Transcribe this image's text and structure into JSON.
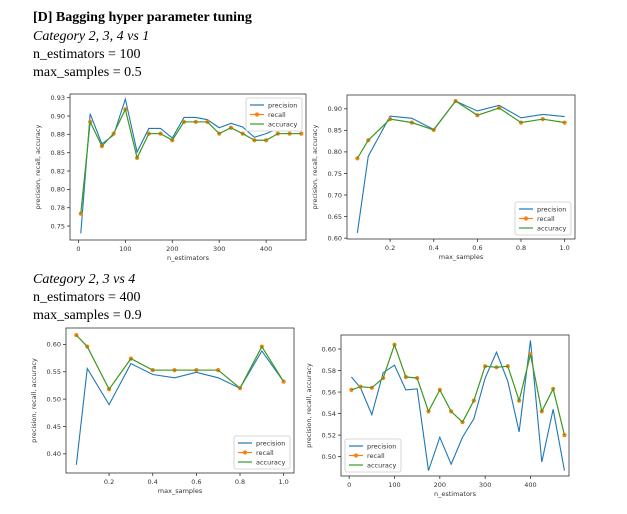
{
  "header": {
    "title": "[D] Bagging hyper parameter tuning",
    "section1": {
      "category": "Category 2, 3, 4 vs 1",
      "n_estimators_line": "n_estimators = 100",
      "max_samples_line": "max_samples = 0.5"
    },
    "section2": {
      "category": "Category 2, 3 vs 4",
      "n_estimators_line": "n_estimators = 400",
      "max_samples_line": "max_samples = 0.9"
    }
  },
  "colors": {
    "precision": "#1f77b4",
    "recall": "#ff7f0e",
    "accuracy": "#2ca02c"
  },
  "chart_data": [
    {
      "type": "line",
      "legend_position": "top-right",
      "xlabel": "n_estimators",
      "ylabel": "precision, recall, accuracy",
      "xlim": [
        -18,
        485
      ],
      "ylim": [
        0.731,
        0.93
      ],
      "xticks": [
        0,
        100,
        200,
        300,
        400
      ],
      "yticks": [
        0.75,
        0.775,
        0.8,
        0.825,
        0.85,
        0.875,
        0.9,
        0.925
      ],
      "x": [
        5,
        25,
        50,
        75,
        100,
        125,
        150,
        175,
        200,
        225,
        250,
        275,
        300,
        325,
        350,
        375,
        400,
        425,
        450,
        475
      ],
      "series": [
        {
          "name": "precision",
          "key": "precision",
          "values": [
            0.74,
            0.903,
            0.862,
            0.874,
            0.923,
            0.851,
            0.883,
            0.883,
            0.87,
            0.898,
            0.898,
            0.895,
            0.884,
            0.89,
            0.885,
            0.871,
            0.876,
            0.883,
            0.883,
            0.883
          ]
        },
        {
          "name": "recall",
          "key": "recall",
          "values": [
            0.767,
            0.892,
            0.859,
            0.876,
            0.909,
            0.843,
            0.876,
            0.876,
            0.867,
            0.892,
            0.892,
            0.892,
            0.876,
            0.884,
            0.876,
            0.867,
            0.867,
            0.876,
            0.876,
            0.876
          ]
        },
        {
          "name": "accuracy",
          "key": "accuracy",
          "values": [
            0.767,
            0.892,
            0.859,
            0.876,
            0.909,
            0.843,
            0.876,
            0.876,
            0.867,
            0.892,
            0.892,
            0.892,
            0.876,
            0.884,
            0.876,
            0.867,
            0.867,
            0.876,
            0.876,
            0.876
          ]
        }
      ]
    },
    {
      "type": "line",
      "legend_position": "lower-right",
      "xlabel": "max_samples",
      "ylabel": "precision, recall, accuracy",
      "xlim": [
        0.0025,
        1.0475
      ],
      "ylim": [
        0.598,
        0.932
      ],
      "xticks": [
        0.2,
        0.4,
        0.6,
        0.8,
        1.0
      ],
      "yticks": [
        0.6,
        0.65,
        0.7,
        0.75,
        0.8,
        0.85,
        0.9
      ],
      "x": [
        0.05,
        0.1,
        0.2,
        0.3,
        0.4,
        0.5,
        0.6,
        0.7,
        0.8,
        0.9,
        1.0
      ],
      "series": [
        {
          "name": "precision",
          "key": "precision",
          "values": [
            0.612,
            0.79,
            0.883,
            0.878,
            0.852,
            0.918,
            0.895,
            0.908,
            0.879,
            0.887,
            0.882
          ]
        },
        {
          "name": "recall",
          "key": "recall",
          "values": [
            0.785,
            0.827,
            0.876,
            0.868,
            0.851,
            0.918,
            0.885,
            0.902,
            0.868,
            0.876,
            0.868
          ]
        },
        {
          "name": "accuracy",
          "key": "accuracy",
          "values": [
            0.785,
            0.827,
            0.876,
            0.868,
            0.851,
            0.918,
            0.885,
            0.902,
            0.868,
            0.876,
            0.868
          ]
        }
      ]
    },
    {
      "type": "line",
      "legend_position": "lower-right",
      "xlabel": "max_samples",
      "ylabel": "precision, recall, accuracy",
      "xlim": [
        0.0025,
        1.0475
      ],
      "ylim": [
        0.365,
        0.63
      ],
      "xticks": [
        0.2,
        0.4,
        0.6,
        0.8,
        1.0
      ],
      "yticks": [
        0.4,
        0.45,
        0.5,
        0.55,
        0.6
      ],
      "x": [
        0.05,
        0.1,
        0.2,
        0.3,
        0.4,
        0.5,
        0.6,
        0.7,
        0.8,
        0.9,
        1.0
      ],
      "series": [
        {
          "name": "precision",
          "key": "precision",
          "values": [
            0.38,
            0.556,
            0.49,
            0.565,
            0.545,
            0.539,
            0.549,
            0.539,
            0.52,
            0.588,
            0.532
          ]
        },
        {
          "name": "recall",
          "key": "recall",
          "values": [
            0.617,
            0.596,
            0.518,
            0.574,
            0.553,
            0.553,
            0.553,
            0.553,
            0.52,
            0.596,
            0.532
          ]
        },
        {
          "name": "accuracy",
          "key": "accuracy",
          "values": [
            0.617,
            0.596,
            0.518,
            0.574,
            0.553,
            0.553,
            0.553,
            0.553,
            0.52,
            0.596,
            0.532
          ]
        }
      ]
    },
    {
      "type": "line",
      "legend_position": "lower-left",
      "xlabel": "n_estimators",
      "ylabel": "precision, recall, accuracy",
      "xlim": [
        -18,
        485
      ],
      "ylim": [
        0.482,
        0.613
      ],
      "xticks": [
        0,
        100,
        200,
        300,
        400
      ],
      "yticks": [
        0.5,
        0.52,
        0.54,
        0.56,
        0.58,
        0.6
      ],
      "x": [
        5,
        25,
        50,
        75,
        100,
        125,
        150,
        175,
        200,
        225,
        250,
        275,
        300,
        325,
        350,
        375,
        400,
        425,
        450,
        475
      ],
      "series": [
        {
          "name": "precision",
          "key": "precision",
          "values": [
            0.574,
            0.564,
            0.539,
            0.578,
            0.585,
            0.562,
            0.563,
            0.487,
            0.518,
            0.493,
            0.518,
            0.535,
            0.573,
            0.597,
            0.57,
            0.523,
            0.608,
            0.495,
            0.544,
            0.487
          ]
        },
        {
          "name": "recall",
          "key": "recall",
          "values": [
            0.562,
            0.565,
            0.564,
            0.573,
            0.604,
            0.574,
            0.573,
            0.542,
            0.562,
            0.542,
            0.532,
            0.552,
            0.584,
            0.583,
            0.584,
            0.552,
            0.595,
            0.542,
            0.563,
            0.52
          ]
        },
        {
          "name": "accuracy",
          "key": "accuracy",
          "values": [
            0.562,
            0.565,
            0.564,
            0.573,
            0.604,
            0.574,
            0.573,
            0.542,
            0.562,
            0.542,
            0.532,
            0.552,
            0.584,
            0.583,
            0.584,
            0.552,
            0.595,
            0.542,
            0.563,
            0.52
          ]
        }
      ]
    }
  ]
}
